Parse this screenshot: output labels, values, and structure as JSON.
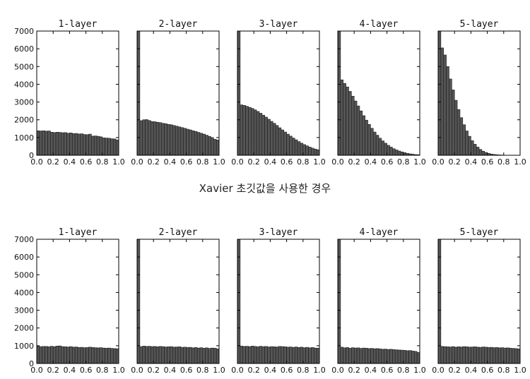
{
  "captions": {
    "xavier": "Xavier 초깃값을 사용한 경우"
  },
  "style": {
    "bar_fill": "#555555",
    "bar_edge": "#1a1a1a",
    "frame": "#000000"
  },
  "chart_data": [
    {
      "group": "xavier",
      "type": "bar",
      "title": "1-layer",
      "xlim": [
        0,
        1
      ],
      "ylim": [
        0,
        7000
      ],
      "xticks": [
        "0.0",
        "0.2",
        "0.4",
        "0.6",
        "0.8",
        "1.0"
      ],
      "yticks": [
        "0",
        "1000",
        "2000",
        "3000",
        "4000",
        "5000",
        "6000",
        "7000"
      ],
      "bins": 30,
      "values": [
        1380,
        1370,
        1380,
        1360,
        1370,
        1300,
        1280,
        1300,
        1290,
        1270,
        1280,
        1240,
        1260,
        1220,
        1230,
        1200,
        1210,
        1170,
        1160,
        1190,
        1080,
        1090,
        1070,
        1040,
        980,
        970,
        960,
        930,
        920,
        860
      ]
    },
    {
      "group": "xavier",
      "type": "bar",
      "title": "2-layer",
      "xlim": [
        0,
        1
      ],
      "ylim": [
        0,
        7000
      ],
      "xticks": [
        "0.0",
        "0.2",
        "0.4",
        "0.6",
        "0.8",
        "1.0"
      ],
      "yticks": [],
      "bins": 30,
      "values": [
        7000,
        1950,
        2000,
        2010,
        1960,
        1900,
        1890,
        1860,
        1840,
        1800,
        1780,
        1740,
        1720,
        1680,
        1640,
        1600,
        1560,
        1520,
        1470,
        1430,
        1380,
        1340,
        1290,
        1240,
        1190,
        1130,
        1060,
        1000,
        900,
        860
      ]
    },
    {
      "group": "xavier",
      "type": "bar",
      "title": "3-layer",
      "xlim": [
        0,
        1
      ],
      "ylim": [
        0,
        7000
      ],
      "xticks": [
        "0.0",
        "0.2",
        "0.4",
        "0.6",
        "0.8",
        "1.0"
      ],
      "yticks": [],
      "bins": 30,
      "values": [
        7000,
        2840,
        2810,
        2760,
        2700,
        2640,
        2560,
        2470,
        2370,
        2260,
        2150,
        2030,
        1910,
        1800,
        1680,
        1550,
        1430,
        1310,
        1190,
        1080,
        970,
        870,
        770,
        680,
        600,
        530,
        460,
        400,
        350,
        310
      ]
    },
    {
      "group": "xavier",
      "type": "bar",
      "title": "4-layer",
      "xlim": [
        0,
        1
      ],
      "ylim": [
        0,
        7000
      ],
      "xticks": [
        "0.0",
        "0.2",
        "0.4",
        "0.6",
        "0.8",
        "1.0"
      ],
      "yticks": [],
      "bins": 30,
      "values": [
        7000,
        4250,
        4050,
        3850,
        3600,
        3330,
        3060,
        2780,
        2500,
        2230,
        1980,
        1740,
        1520,
        1310,
        1130,
        960,
        810,
        680,
        560,
        460,
        370,
        300,
        240,
        190,
        150,
        110,
        80,
        60,
        40,
        30
      ]
    },
    {
      "group": "xavier",
      "type": "bar",
      "title": "5-layer",
      "xlim": [
        0,
        1
      ],
      "ylim": [
        0,
        7000
      ],
      "xticks": [
        "0.0",
        "0.2",
        "0.4",
        "0.6",
        "0.8",
        "1.0"
      ],
      "yticks": [],
      "bins": 30,
      "values": [
        7000,
        6050,
        5650,
        5000,
        4300,
        3680,
        3100,
        2580,
        2120,
        1720,
        1370,
        1070,
        820,
        620,
        460,
        330,
        230,
        160,
        110,
        70,
        45,
        30,
        20,
        12,
        8,
        5,
        3,
        2,
        1,
        1
      ]
    },
    {
      "group": "bottom",
      "type": "bar",
      "title": "1-layer",
      "xlim": [
        0,
        1
      ],
      "ylim": [
        0,
        7000
      ],
      "xticks": [
        "0.0",
        "0.2",
        "0.4",
        "0.6",
        "0.8",
        "1.0"
      ],
      "yticks": [
        "0",
        "1000",
        "2000",
        "3000",
        "4000",
        "5000",
        "6000",
        "7000"
      ],
      "bins": 30,
      "values": [
        980,
        950,
        960,
        960,
        940,
        970,
        950,
        980,
        990,
        950,
        940,
        930,
        950,
        920,
        930,
        900,
        910,
        890,
        900,
        920,
        900,
        890,
        880,
        890,
        870,
        860,
        870,
        850,
        840,
        830
      ]
    },
    {
      "group": "bottom",
      "type": "bar",
      "title": "2-layer",
      "xlim": [
        0,
        1
      ],
      "ylim": [
        0,
        7000
      ],
      "xticks": [
        "0.0",
        "0.2",
        "0.4",
        "0.6",
        "0.8",
        "1.0"
      ],
      "yticks": [],
      "bins": 30,
      "values": [
        7000,
        950,
        980,
        960,
        970,
        950,
        960,
        940,
        960,
        950,
        930,
        940,
        950,
        920,
        930,
        940,
        910,
        920,
        900,
        910,
        880,
        900,
        870,
        890,
        860,
        880,
        850,
        870,
        860,
        820
      ]
    },
    {
      "group": "bottom",
      "type": "bar",
      "title": "3-layer",
      "xlim": [
        0,
        1
      ],
      "ylim": [
        0,
        7000
      ],
      "xticks": [
        "0.0",
        "0.2",
        "0.4",
        "0.6",
        "0.8",
        "1.0"
      ],
      "yticks": [],
      "bins": 30,
      "values": [
        7000,
        980,
        960,
        970,
        950,
        980,
        960,
        940,
        970,
        950,
        960,
        930,
        950,
        940,
        930,
        960,
        950,
        940,
        920,
        930,
        910,
        930,
        900,
        920,
        890,
        910,
        880,
        900,
        870,
        860
      ]
    },
    {
      "group": "bottom",
      "type": "bar",
      "title": "4-layer",
      "xlim": [
        0,
        1
      ],
      "ylim": [
        0,
        7000
      ],
      "xticks": [
        "0.0",
        "0.2",
        "0.4",
        "0.6",
        "0.8",
        "1.0"
      ],
      "yticks": [],
      "bins": 30,
      "values": [
        7000,
        920,
        880,
        900,
        860,
        890,
        870,
        880,
        850,
        870,
        860,
        840,
        850,
        830,
        840,
        820,
        800,
        810,
        790,
        800,
        780,
        770,
        760,
        750,
        740,
        720,
        730,
        700,
        680,
        620
      ]
    },
    {
      "group": "bottom",
      "type": "bar",
      "title": "5-layer",
      "xlim": [
        0,
        1
      ],
      "ylim": [
        0,
        7000
      ],
      "xticks": [
        "0.0",
        "0.2",
        "0.4",
        "0.6",
        "0.8",
        "1.0"
      ],
      "yticks": [],
      "bins": 30,
      "values": [
        7000,
        960,
        950,
        940,
        930,
        950,
        920,
        940,
        930,
        950,
        940,
        920,
        930,
        940,
        920,
        910,
        930,
        920,
        900,
        910,
        890,
        900,
        880,
        890,
        870,
        880,
        860,
        850,
        840,
        820
      ]
    }
  ]
}
